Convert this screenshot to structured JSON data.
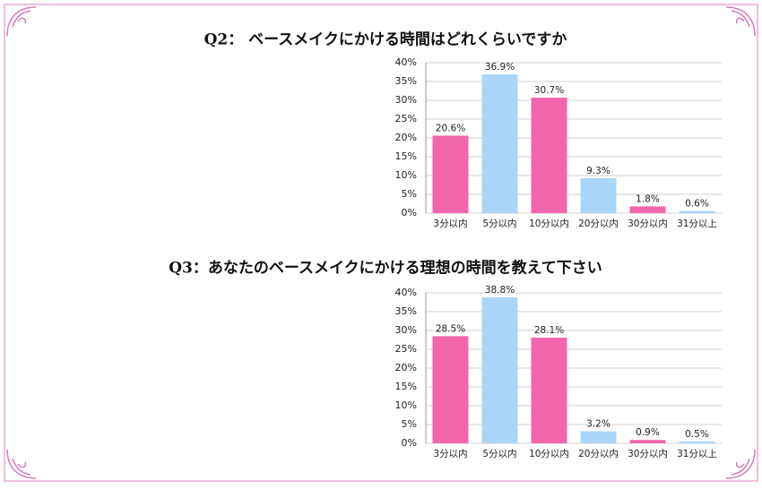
{
  "chart_data": [
    {
      "type": "bar",
      "title": "Q2： ベースメイクにかける時間はどれくらいですか",
      "categories": [
        "3分以内",
        "5分以内",
        "10分以内",
        "20分以内",
        "30分以内",
        "31分以上"
      ],
      "values": [
        20.6,
        36.9,
        30.7,
        9.3,
        1.8,
        0.6
      ],
      "value_labels": [
        "20.6%",
        "36.9%",
        "30.7%",
        "9.3%",
        "1.8%",
        "0.6%"
      ],
      "colors": [
        "#f266ab",
        "#abd5f9",
        "#f266ab",
        "#abd5f9",
        "#f266ab",
        "#abd5f9"
      ],
      "ylim": [
        0,
        40
      ],
      "yticks": [
        {
          "value": 0,
          "label": "0%"
        },
        {
          "value": 5,
          "label": "5%"
        },
        {
          "value": 10,
          "label": "10%"
        },
        {
          "value": 15,
          "label": "15%"
        },
        {
          "value": 20,
          "label": "20%"
        },
        {
          "value": 25,
          "label": "25%"
        },
        {
          "value": 30,
          "label": "30%"
        },
        {
          "value": 35,
          "label": "35%"
        },
        {
          "value": 40,
          "label": "40%"
        }
      ],
      "grid": true
    },
    {
      "type": "bar",
      "title": "Q3：あなたのベースメイクにかける理想の時間を教えて下さい",
      "categories": [
        "3分以内",
        "5分以内",
        "10分以内",
        "20分以内",
        "30分以内",
        "31分以上"
      ],
      "values": [
        28.5,
        38.8,
        28.1,
        3.2,
        0.9,
        0.5
      ],
      "value_labels": [
        "28.5%",
        "38.8%",
        "28.1%",
        "3.2%",
        "0.9%",
        "0.5%"
      ],
      "colors": [
        "#f266ab",
        "#abd5f9",
        "#f266ab",
        "#abd5f9",
        "#f266ab",
        "#abd5f9"
      ],
      "ylim": [
        0,
        40
      ],
      "yticks": [
        {
          "value": 0,
          "label": "0%"
        },
        {
          "value": 5,
          "label": "5%"
        },
        {
          "value": 10,
          "label": "10%"
        },
        {
          "value": 15,
          "label": "15%"
        },
        {
          "value": 20,
          "label": "20%"
        },
        {
          "value": 25,
          "label": "25%"
        },
        {
          "value": 30,
          "label": "30%"
        },
        {
          "value": 35,
          "label": "35%"
        },
        {
          "value": 40,
          "label": "40%"
        }
      ],
      "grid": true
    }
  ]
}
